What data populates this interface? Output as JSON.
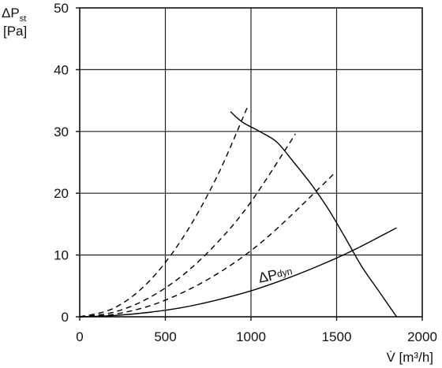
{
  "chart_data": {
    "type": "line",
    "ylabel_main": "ΔP",
    "ylabel_sub": "st",
    "ylabel_unit": "[Pa]",
    "xlabel": "V̇ [m³/h]",
    "xlim": [
      0,
      2000
    ],
    "ylim": [
      0,
      50
    ],
    "x_ticks": [
      0,
      500,
      1000,
      1500,
      2000
    ],
    "y_ticks": [
      0,
      10,
      20,
      30,
      40,
      50
    ],
    "x_tick_labels": [
      "0",
      "500",
      "1000",
      "1500",
      "2000"
    ],
    "y_tick_labels": [
      "0",
      "10",
      "20",
      "30",
      "40",
      "50"
    ],
    "grid": true,
    "annotation": {
      "main": "ΔP",
      "sub": "dyn",
      "x": 1050,
      "y": 5.5
    },
    "series": [
      {
        "style": "solid",
        "x": [
          880,
          950,
          1050,
          1150,
          1250,
          1350,
          1450,
          1550,
          1650,
          1750,
          1850
        ],
        "y": [
          33.2,
          31.5,
          30.0,
          28.3,
          25.0,
          21.5,
          17.5,
          12.8,
          8.0,
          4.0,
          0.0
        ]
      },
      {
        "name": "ΔP dyn",
        "style": "solid",
        "x": [
          0,
          200,
          400,
          600,
          800,
          1000,
          1200,
          1400,
          1600,
          1850
        ],
        "y": [
          0.0,
          0.2,
          0.7,
          1.5,
          2.7,
          4.2,
          6.1,
          8.3,
          10.8,
          14.4
        ]
      },
      {
        "style": "dashed",
        "x": [
          0,
          200,
          400,
          600,
          800,
          980
        ],
        "y": [
          0.0,
          1.4,
          5.6,
          12.7,
          22.6,
          34.0
        ]
      },
      {
        "style": "dashed",
        "x": [
          0,
          200,
          400,
          600,
          800,
          1000,
          1260
        ],
        "y": [
          0.0,
          0.75,
          3.0,
          6.7,
          11.9,
          18.6,
          29.6
        ]
      },
      {
        "style": "dashed",
        "x": [
          0,
          200,
          400,
          600,
          800,
          1000,
          1200,
          1490
        ],
        "y": [
          0.0,
          0.4,
          1.7,
          3.9,
          6.9,
          10.7,
          15.5,
          23.3
        ]
      }
    ]
  }
}
